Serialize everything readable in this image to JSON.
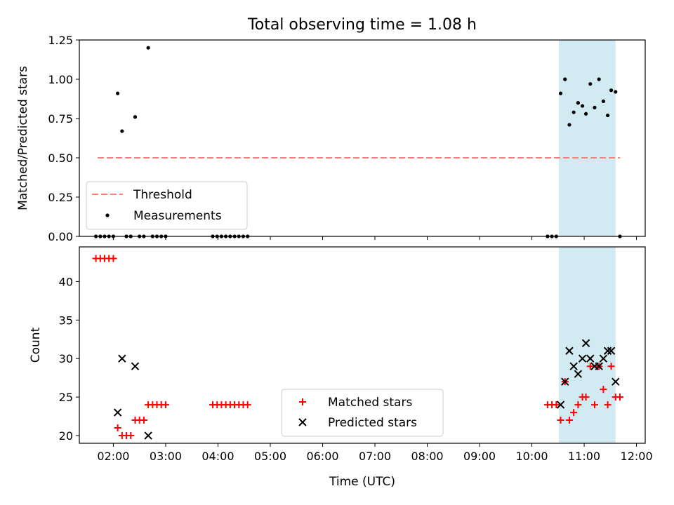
{
  "title": "Total observing time = 1.08 h",
  "xlabel": "Time (UTC)",
  "x_ticks": [
    "02:00",
    "03:00",
    "04:00",
    "05:00",
    "06:00",
    "07:00",
    "08:00",
    "09:00",
    "10:00",
    "11:00",
    "12:00"
  ],
  "chart_data": [
    {
      "type": "scatter",
      "panel": "top",
      "ylabel": "Matched/Predicted stars",
      "xlim": [
        "01:21",
        "12:10"
      ],
      "ylim": [
        0,
        1.25
      ],
      "y_ticks": [
        "0.00",
        "0.25",
        "0.50",
        "0.75",
        "1.00",
        "1.25"
      ],
      "shaded_span": {
        "x": [
          "10:31",
          "11:36"
        ],
        "color": "#add8e6"
      },
      "legend": {
        "placement": "lower-left",
        "entries": [
          "Threshold",
          "Measurements"
        ]
      },
      "series": [
        {
          "name": "Threshold",
          "style": "dashed-line",
          "color": "#ff7f7f",
          "points": [
            {
              "x": "01:42",
              "y": 0.5
            },
            {
              "x": "11:41",
              "y": 0.5
            }
          ]
        },
        {
          "name": "Measurements",
          "style": "dot",
          "color": "#000000",
          "points": [
            {
              "x": "01:40",
              "y": 0
            },
            {
              "x": "01:45",
              "y": 0
            },
            {
              "x": "01:50",
              "y": 0
            },
            {
              "x": "01:55",
              "y": 0
            },
            {
              "x": "02:00",
              "y": 0
            },
            {
              "x": "02:05",
              "y": 0.91
            },
            {
              "x": "02:10",
              "y": 0.67
            },
            {
              "x": "02:15",
              "y": 0
            },
            {
              "x": "02:20",
              "y": 0
            },
            {
              "x": "02:25",
              "y": 0.76
            },
            {
              "x": "02:30",
              "y": 0
            },
            {
              "x": "02:35",
              "y": 0
            },
            {
              "x": "02:40",
              "y": 1.2
            },
            {
              "x": "02:45",
              "y": 0
            },
            {
              "x": "02:50",
              "y": 0
            },
            {
              "x": "02:55",
              "y": 0
            },
            {
              "x": "03:00",
              "y": 0
            },
            {
              "x": "03:54",
              "y": 0
            },
            {
              "x": "03:59",
              "y": 0
            },
            {
              "x": "04:04",
              "y": 0
            },
            {
              "x": "04:09",
              "y": 0
            },
            {
              "x": "04:14",
              "y": 0
            },
            {
              "x": "04:19",
              "y": 0
            },
            {
              "x": "04:24",
              "y": 0
            },
            {
              "x": "04:29",
              "y": 0
            },
            {
              "x": "04:34",
              "y": 0
            },
            {
              "x": "10:18",
              "y": 0
            },
            {
              "x": "10:23",
              "y": 0
            },
            {
              "x": "10:28",
              "y": 0
            },
            {
              "x": "10:33",
              "y": 0.91
            },
            {
              "x": "10:38",
              "y": 1.0
            },
            {
              "x": "10:43",
              "y": 0.71
            },
            {
              "x": "10:48",
              "y": 0.79
            },
            {
              "x": "10:53",
              "y": 0.85
            },
            {
              "x": "10:58",
              "y": 0.83
            },
            {
              "x": "11:02",
              "y": 0.78
            },
            {
              "x": "11:07",
              "y": 0.97
            },
            {
              "x": "11:12",
              "y": 0.82
            },
            {
              "x": "11:17",
              "y": 1.0
            },
            {
              "x": "11:22",
              "y": 0.86
            },
            {
              "x": "11:27",
              "y": 0.77
            },
            {
              "x": "11:31",
              "y": 0.93
            },
            {
              "x": "11:36",
              "y": 0.92
            },
            {
              "x": "11:41",
              "y": 0
            }
          ]
        }
      ]
    },
    {
      "type": "scatter",
      "panel": "bottom",
      "ylabel": "Count",
      "xlim": [
        "01:21",
        "12:10"
      ],
      "ylim": [
        19,
        44.5
      ],
      "y_ticks": [
        "20",
        "25",
        "30",
        "35",
        "40"
      ],
      "shaded_span": {
        "x": [
          "10:31",
          "11:36"
        ],
        "color": "#add8e6"
      },
      "legend": {
        "placement": "bottom-center",
        "entries": [
          "Matched stars",
          "Predicted stars"
        ]
      },
      "series": [
        {
          "name": "Matched stars",
          "marker": "+",
          "color": "#ff0000",
          "points": [
            {
              "x": "01:40",
              "y": 43
            },
            {
              "x": "01:45",
              "y": 43
            },
            {
              "x": "01:50",
              "y": 43
            },
            {
              "x": "01:55",
              "y": 43
            },
            {
              "x": "02:00",
              "y": 43
            },
            {
              "x": "02:05",
              "y": 21
            },
            {
              "x": "02:10",
              "y": 20
            },
            {
              "x": "02:15",
              "y": 20
            },
            {
              "x": "02:20",
              "y": 20
            },
            {
              "x": "02:25",
              "y": 22
            },
            {
              "x": "02:30",
              "y": 22
            },
            {
              "x": "02:35",
              "y": 22
            },
            {
              "x": "02:40",
              "y": 24
            },
            {
              "x": "02:45",
              "y": 24
            },
            {
              "x": "02:50",
              "y": 24
            },
            {
              "x": "02:55",
              "y": 24
            },
            {
              "x": "03:00",
              "y": 24
            },
            {
              "x": "03:54",
              "y": 24
            },
            {
              "x": "03:59",
              "y": 24
            },
            {
              "x": "04:04",
              "y": 24
            },
            {
              "x": "04:09",
              "y": 24
            },
            {
              "x": "04:14",
              "y": 24
            },
            {
              "x": "04:19",
              "y": 24
            },
            {
              "x": "04:24",
              "y": 24
            },
            {
              "x": "04:29",
              "y": 24
            },
            {
              "x": "04:34",
              "y": 24
            },
            {
              "x": "10:18",
              "y": 24
            },
            {
              "x": "10:23",
              "y": 24
            },
            {
              "x": "10:28",
              "y": 24
            },
            {
              "x": "10:33",
              "y": 22
            },
            {
              "x": "10:38",
              "y": 27
            },
            {
              "x": "10:43",
              "y": 22
            },
            {
              "x": "10:48",
              "y": 23
            },
            {
              "x": "10:53",
              "y": 24
            },
            {
              "x": "10:58",
              "y": 25
            },
            {
              "x": "11:02",
              "y": 25
            },
            {
              "x": "11:07",
              "y": 29
            },
            {
              "x": "11:12",
              "y": 24
            },
            {
              "x": "11:17",
              "y": 29
            },
            {
              "x": "11:22",
              "y": 26
            },
            {
              "x": "11:27",
              "y": 24
            },
            {
              "x": "11:31",
              "y": 29
            },
            {
              "x": "11:36",
              "y": 25
            },
            {
              "x": "11:41",
              "y": 25
            }
          ]
        },
        {
          "name": "Predicted stars",
          "marker": "x",
          "color": "#000000",
          "points": [
            {
              "x": "02:05",
              "y": 23
            },
            {
              "x": "02:10",
              "y": 30
            },
            {
              "x": "02:25",
              "y": 29
            },
            {
              "x": "02:40",
              "y": 20
            },
            {
              "x": "10:33",
              "y": 24
            },
            {
              "x": "10:38",
              "y": 27
            },
            {
              "x": "10:43",
              "y": 31
            },
            {
              "x": "10:48",
              "y": 29
            },
            {
              "x": "10:53",
              "y": 28
            },
            {
              "x": "10:58",
              "y": 30
            },
            {
              "x": "11:02",
              "y": 32
            },
            {
              "x": "11:07",
              "y": 30
            },
            {
              "x": "11:12",
              "y": 29
            },
            {
              "x": "11:17",
              "y": 29
            },
            {
              "x": "11:22",
              "y": 30
            },
            {
              "x": "11:27",
              "y": 31
            },
            {
              "x": "11:31",
              "y": 31
            },
            {
              "x": "11:36",
              "y": 27
            }
          ]
        }
      ]
    }
  ]
}
